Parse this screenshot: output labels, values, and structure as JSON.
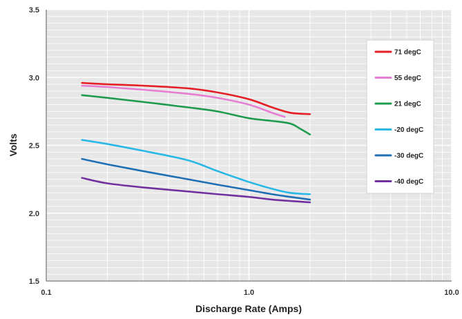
{
  "chart_data": {
    "type": "line",
    "title": "",
    "xlabel": "Discharge Rate (Amps)",
    "ylabel": "Volts",
    "x_scale": "log",
    "xlim": [
      0.1,
      10.0
    ],
    "ylim": [
      1.5,
      3.5
    ],
    "x_ticks": [
      0.1,
      1.0,
      10.0
    ],
    "x_tick_labels": [
      "0.1",
      "1.0",
      "10.0"
    ],
    "y_ticks": [
      1.5,
      2.0,
      2.5,
      3.0,
      3.5
    ],
    "y_tick_labels": [
      "1.5",
      "2.0",
      "2.5",
      "3.0",
      "3.5"
    ],
    "grid": true,
    "legend_position": "right",
    "series": [
      {
        "name": "71 degC",
        "color": "#e41f26",
        "x": [
          0.15,
          0.2,
          0.3,
          0.5,
          0.7,
          1.0,
          1.3,
          1.6,
          2.0
        ],
        "y": [
          2.96,
          2.95,
          2.94,
          2.92,
          2.89,
          2.84,
          2.78,
          2.74,
          2.73
        ]
      },
      {
        "name": "55 degC",
        "color": "#e67ed3",
        "x": [
          0.15,
          0.2,
          0.3,
          0.5,
          0.7,
          1.0,
          1.3,
          1.5
        ],
        "y": [
          2.94,
          2.93,
          2.91,
          2.88,
          2.85,
          2.8,
          2.74,
          2.71
        ]
      },
      {
        "name": "21 degC",
        "color": "#1e9b4f",
        "x": [
          0.15,
          0.2,
          0.3,
          0.5,
          0.7,
          1.0,
          1.3,
          1.6,
          1.8,
          2.0
        ],
        "y": [
          2.87,
          2.85,
          2.82,
          2.78,
          2.75,
          2.7,
          2.68,
          2.66,
          2.62,
          2.58
        ]
      },
      {
        "name": "-20 degC",
        "color": "#27b8e6",
        "x": [
          0.15,
          0.2,
          0.3,
          0.5,
          0.7,
          1.0,
          1.3,
          1.6,
          2.0
        ],
        "y": [
          2.54,
          2.51,
          2.46,
          2.39,
          2.31,
          2.23,
          2.18,
          2.15,
          2.14
        ]
      },
      {
        "name": "-30 degC",
        "color": "#1f6fb4",
        "x": [
          0.15,
          0.2,
          0.3,
          0.5,
          0.7,
          1.0,
          1.3,
          1.6,
          2.0
        ],
        "y": [
          2.4,
          2.36,
          2.31,
          2.25,
          2.21,
          2.17,
          2.14,
          2.12,
          2.1
        ]
      },
      {
        "name": "-40 degC",
        "color": "#7030a0",
        "x": [
          0.15,
          0.2,
          0.3,
          0.5,
          0.7,
          1.0,
          1.3,
          1.6,
          2.0
        ],
        "y": [
          2.26,
          2.22,
          2.19,
          2.16,
          2.14,
          2.12,
          2.1,
          2.09,
          2.08
        ]
      }
    ]
  }
}
